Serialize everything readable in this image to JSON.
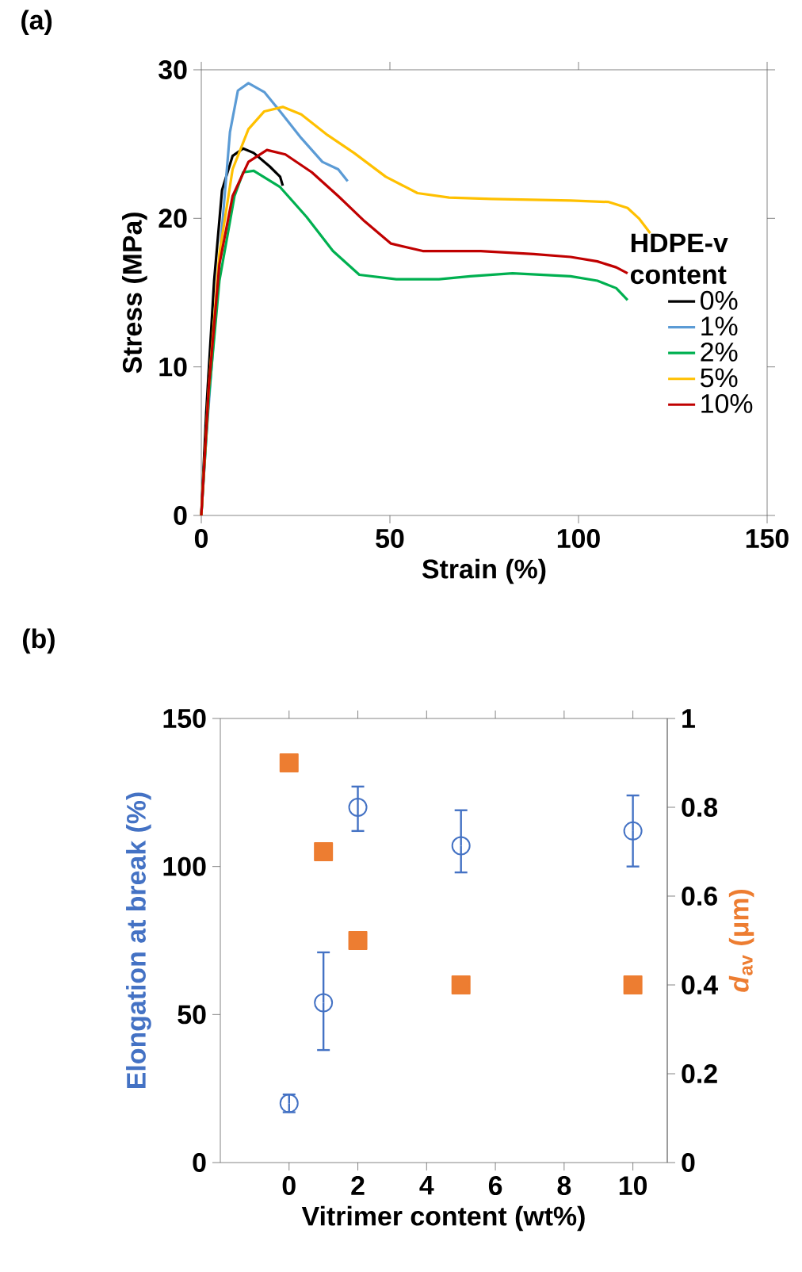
{
  "chart_data": [
    {
      "type": "line",
      "title": "(a)",
      "xlabel": "Strain (%)",
      "ylabel": "Stress (MPa)",
      "legend_title": "HDPE-v content",
      "legend": "right",
      "xlim": [
        0,
        150
      ],
      "xticks": [
        0,
        50,
        100,
        150
      ],
      "ylim": [
        0,
        30
      ],
      "yticks": [
        0,
        10,
        20,
        30
      ],
      "series": [
        {
          "name": "0%",
          "color": "#000000",
          "x": [
            0,
            1.3,
            3.4,
            5.5,
            8.3,
            11.1,
            13.9,
            18.1,
            20.9,
            21.6
          ],
          "values": [
            0,
            6.9,
            15.8,
            21.9,
            24.2,
            24.7,
            24.4,
            23.5,
            22.8,
            22.2
          ]
        },
        {
          "name": "1%",
          "color": "#5b9bd5",
          "x": [
            0,
            1.3,
            3.4,
            5.5,
            7.6,
            9.7,
            12.5,
            16.7,
            20.9,
            26.5,
            32.1,
            36.3,
            38.8
          ],
          "values": [
            0,
            5.2,
            12.3,
            19.4,
            25.8,
            28.6,
            29.1,
            28.5,
            27.2,
            25.4,
            23.8,
            23.3,
            22.5
          ]
        },
        {
          "name": "2%",
          "color": "#00b050",
          "x": [
            0,
            2,
            4.8,
            8.8,
            11.1,
            13.9,
            20.9,
            27.9,
            34.9,
            41.9,
            51.7,
            63,
            71.3,
            82.5,
            97.9,
            105,
            110,
            113
          ],
          "values": [
            0,
            8,
            15.8,
            21.5,
            23.1,
            23.2,
            22.1,
            20.1,
            17.8,
            16.2,
            15.9,
            15.9,
            16.1,
            16.3,
            16.1,
            15.8,
            15.3,
            14.5
          ]
        },
        {
          "name": "5%",
          "color": "#ffc000",
          "x": [
            0,
            2,
            4.8,
            8.3,
            12.5,
            16.7,
            21.6,
            26.5,
            33.5,
            40.5,
            48.9,
            57.3,
            65.7,
            76.9,
            97.9,
            108,
            113,
            116,
            119
          ],
          "values": [
            0,
            8.7,
            17.6,
            23.3,
            26,
            27.2,
            27.5,
            27,
            25.6,
            24.4,
            22.8,
            21.7,
            21.4,
            21.3,
            21.2,
            21.1,
            20.7,
            20,
            19
          ]
        },
        {
          "name": "10%",
          "color": "#c00000",
          "x": [
            0,
            2,
            4.8,
            8.3,
            12.5,
            17.4,
            22.3,
            29.3,
            36.3,
            43.3,
            50.3,
            58.7,
            74.1,
            88.1,
            97.9,
            105,
            110,
            113
          ],
          "values": [
            0,
            8.7,
            16.9,
            21.5,
            23.8,
            24.6,
            24.3,
            23.1,
            21.5,
            19.8,
            18.3,
            17.8,
            17.8,
            17.6,
            17.4,
            17.1,
            16.7,
            16.3
          ]
        }
      ]
    },
    {
      "type": "scatter",
      "title": "(b)",
      "xlabel": "Vitrimer content (wt%)",
      "ylabel": "Elongation at break (%)",
      "y2label": "*d*$_{av}$ (μm)",
      "xlim": [
        -2,
        11
      ],
      "xticks": [
        0,
        2,
        4,
        6,
        8,
        10
      ],
      "ylim": [
        0,
        150
      ],
      "yticks": [
        0,
        50,
        100,
        150
      ],
      "y2lim": [
        0,
        1
      ],
      "y2ticks": [
        0,
        0.2,
        0.4,
        0.6,
        0.8,
        1
      ],
      "series": [
        {
          "color": "#4472c4",
          "marker": "circle",
          "x": [
            0,
            1,
            2,
            5,
            10
          ],
          "values": [
            20,
            54,
            120,
            107,
            112
          ],
          "errors": [
            [
              17,
              23
            ],
            [
              38,
              71
            ],
            [
              112,
              127
            ],
            [
              98,
              119
            ],
            [
              100,
              124
            ]
          ]
        },
        {
          "color": "#ed7d31",
          "marker": "square",
          "axis": "y2",
          "x": [
            0,
            1,
            2,
            5,
            10
          ],
          "values": [
            0.9,
            0.7,
            0.5,
            0.4,
            0.4
          ]
        }
      ]
    }
  ]
}
